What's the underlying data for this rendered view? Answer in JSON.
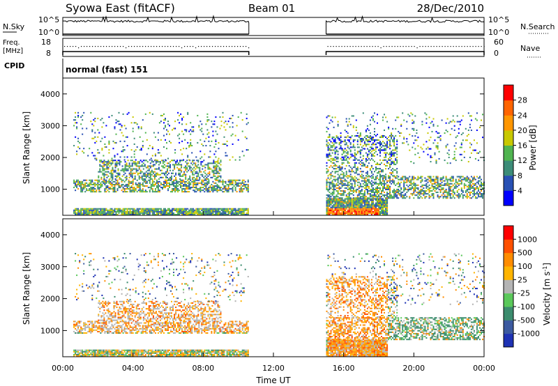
{
  "header": {
    "station": "Syowa East (fitACF)",
    "beam": "Beam 01",
    "date": "28/Dec/2010",
    "cpid_label": "CPID",
    "cpid_value": "normal (fast) 151"
  },
  "panels": {
    "nsky": {
      "left_label": "N.Sky",
      "right_label": "N.Search",
      "left_ticks": [
        "10^5",
        "10^0"
      ],
      "right_ticks": [
        "10^5",
        "10^0"
      ]
    },
    "freq": {
      "left_label_1": "Freq.",
      "left_label_2": "[MHz]",
      "right_label": "Nave",
      "left_ticks": [
        "18",
        "8"
      ],
      "right_ticks": [
        "60",
        "0"
      ]
    }
  },
  "chart_data": [
    {
      "type": "heatmap",
      "title": "",
      "xlabel": "",
      "ylabel": "Slant Range [km]",
      "x_ticks": [
        "00:00",
        "04:00",
        "08:00",
        "12:00",
        "16:00",
        "20:00",
        "00:00"
      ],
      "y_ticks": [
        1000,
        2000,
        3000,
        4000
      ],
      "xlim_hours": [
        0,
        24
      ],
      "ylim_km": [
        180,
        4500
      ],
      "data_gap_hours": [
        10.6,
        15.0
      ],
      "colorbar": {
        "label": "Power [dB]",
        "ticks": [
          "4",
          "8",
          "12",
          "16",
          "20",
          "24",
          "28"
        ],
        "colors": [
          "#0000ff",
          "#2850b4",
          "#3c8c78",
          "#50b450",
          "#c8c800",
          "#ff9600",
          "#ff6400",
          "#ff0000"
        ]
      }
    },
    {
      "type": "heatmap",
      "title": "",
      "xlabel": "Time UT",
      "ylabel": "Slant Range [km]",
      "x_ticks": [
        "00:00",
        "04:00",
        "08:00",
        "12:00",
        "16:00",
        "20:00",
        "00:00"
      ],
      "y_ticks": [
        1000,
        2000,
        3000,
        4000
      ],
      "xlim_hours": [
        0,
        24
      ],
      "ylim_km": [
        180,
        4500
      ],
      "data_gap_hours": [
        10.6,
        15.0
      ],
      "colorbar": {
        "label": "Velocity [m s^-1]",
        "ticks": [
          "1000",
          "500",
          "100",
          "25",
          "-25",
          "-100",
          "-500",
          "-1000"
        ],
        "colors": [
          "#1e32b4",
          "#3c5aa0",
          "#3c8c6e",
          "#5ac85a",
          "#b4b4b4",
          "#ffb400",
          "#ff8c00",
          "#ff5000",
          "#ff0000"
        ]
      }
    }
  ],
  "colors": {
    "frame": "#000000",
    "background": "#ffffff"
  }
}
